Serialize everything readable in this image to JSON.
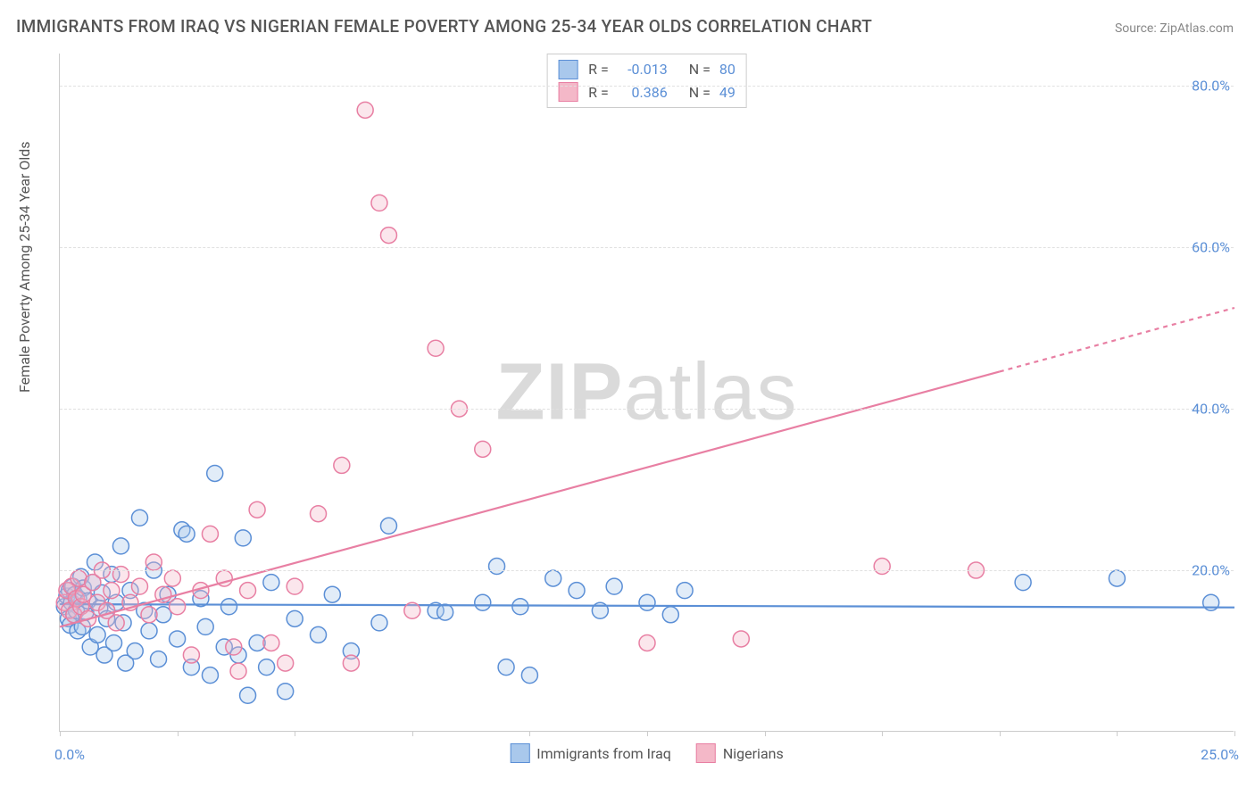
{
  "title": "IMMIGRANTS FROM IRAQ VS NIGERIAN FEMALE POVERTY AMONG 25-34 YEAR OLDS CORRELATION CHART",
  "source": "Source: ZipAtlas.com",
  "ylabel": "Female Poverty Among 25-34 Year Olds",
  "watermark_bold": "ZIP",
  "watermark_rest": "atlas",
  "chart": {
    "type": "scatter",
    "background_color": "#ffffff",
    "grid_color": "#e0e0e0",
    "axis_color": "#cccccc",
    "tick_label_color": "#5b8fd6",
    "xlim": [
      0,
      25
    ],
    "ylim": [
      0,
      84
    ],
    "x_tick_positions": [
      0,
      2.5,
      5,
      7.5,
      10,
      12.5,
      15,
      17.5,
      20,
      22.5,
      25
    ],
    "x_tick_labels": {
      "0": "0.0%",
      "25": "25.0%"
    },
    "y_gridlines": [
      20,
      40,
      60,
      80
    ],
    "y_tick_labels": {
      "20": "20.0%",
      "40": "40.0%",
      "60": "60.0%",
      "80": "80.0%"
    },
    "marker_radius": 9,
    "marker_stroke_width": 1.5,
    "marker_fill_opacity": 0.35,
    "line_width": 2.2
  },
  "series": [
    {
      "key": "iraq",
      "label": "Immigrants from Iraq",
      "color_fill": "#a9c8ec",
      "color_stroke": "#5b8fd6",
      "R": "-0.013",
      "N": "80",
      "trend": {
        "slope": -0.016,
        "intercept": 15.8,
        "x_solid_end": 25,
        "x_dash_end": 25
      },
      "points": [
        [
          0.1,
          15.5
        ],
        [
          0.15,
          16.8
        ],
        [
          0.18,
          14.0
        ],
        [
          0.2,
          17.5
        ],
        [
          0.22,
          13.2
        ],
        [
          0.25,
          16.0
        ],
        [
          0.28,
          18.0
        ],
        [
          0.3,
          14.5
        ],
        [
          0.32,
          17.0
        ],
        [
          0.35,
          15.0
        ],
        [
          0.38,
          12.5
        ],
        [
          0.4,
          16.5
        ],
        [
          0.45,
          19.2
        ],
        [
          0.48,
          13.0
        ],
        [
          0.5,
          17.8
        ],
        [
          0.55,
          14.8
        ],
        [
          0.6,
          16.2
        ],
        [
          0.65,
          10.5
        ],
        [
          0.7,
          18.5
        ],
        [
          0.75,
          21.0
        ],
        [
          0.8,
          12.0
        ],
        [
          0.85,
          15.3
        ],
        [
          0.9,
          17.2
        ],
        [
          0.95,
          9.5
        ],
        [
          1.0,
          14.0
        ],
        [
          1.1,
          19.5
        ],
        [
          1.15,
          11.0
        ],
        [
          1.2,
          16.0
        ],
        [
          1.3,
          23.0
        ],
        [
          1.35,
          13.5
        ],
        [
          1.4,
          8.5
        ],
        [
          1.5,
          17.5
        ],
        [
          1.6,
          10.0
        ],
        [
          1.7,
          26.5
        ],
        [
          1.8,
          15.0
        ],
        [
          1.9,
          12.5
        ],
        [
          2.0,
          20.0
        ],
        [
          2.1,
          9.0
        ],
        [
          2.2,
          14.5
        ],
        [
          2.3,
          17.0
        ],
        [
          2.5,
          11.5
        ],
        [
          2.6,
          25.0
        ],
        [
          2.7,
          24.5
        ],
        [
          2.8,
          8.0
        ],
        [
          3.0,
          16.5
        ],
        [
          3.1,
          13.0
        ],
        [
          3.2,
          7.0
        ],
        [
          3.3,
          32.0
        ],
        [
          3.5,
          10.5
        ],
        [
          3.6,
          15.5
        ],
        [
          3.8,
          9.5
        ],
        [
          3.9,
          24.0
        ],
        [
          4.0,
          4.5
        ],
        [
          4.2,
          11.0
        ],
        [
          4.4,
          8.0
        ],
        [
          4.5,
          18.5
        ],
        [
          4.8,
          5.0
        ],
        [
          5.0,
          14.0
        ],
        [
          5.5,
          12.0
        ],
        [
          5.8,
          17.0
        ],
        [
          6.2,
          10.0
        ],
        [
          6.8,
          13.5
        ],
        [
          7.0,
          25.5
        ],
        [
          8.0,
          15.0
        ],
        [
          8.2,
          14.8
        ],
        [
          9.0,
          16.0
        ],
        [
          9.3,
          20.5
        ],
        [
          9.5,
          8.0
        ],
        [
          9.8,
          15.5
        ],
        [
          10.0,
          7.0
        ],
        [
          10.5,
          19.0
        ],
        [
          11.0,
          17.5
        ],
        [
          11.5,
          15.0
        ],
        [
          11.8,
          18.0
        ],
        [
          12.5,
          16.0
        ],
        [
          13.0,
          14.5
        ],
        [
          13.3,
          17.5
        ],
        [
          20.5,
          18.5
        ],
        [
          22.5,
          19.0
        ],
        [
          24.5,
          16.0
        ]
      ]
    },
    {
      "key": "nigerian",
      "label": "Nigerians",
      "color_fill": "#f4b8c8",
      "color_stroke": "#e87fa3",
      "R": "0.386",
      "N": "49",
      "trend": {
        "slope": 1.58,
        "intercept": 13.0,
        "x_solid_end": 20,
        "x_dash_end": 25
      },
      "points": [
        [
          0.1,
          16.0
        ],
        [
          0.15,
          17.5
        ],
        [
          0.2,
          15.0
        ],
        [
          0.25,
          18.0
        ],
        [
          0.3,
          14.5
        ],
        [
          0.35,
          16.5
        ],
        [
          0.4,
          19.0
        ],
        [
          0.45,
          15.5
        ],
        [
          0.5,
          17.0
        ],
        [
          0.6,
          14.0
        ],
        [
          0.7,
          18.5
        ],
        [
          0.8,
          16.0
        ],
        [
          0.9,
          20.0
        ],
        [
          1.0,
          15.0
        ],
        [
          1.1,
          17.5
        ],
        [
          1.2,
          13.5
        ],
        [
          1.3,
          19.5
        ],
        [
          1.5,
          16.0
        ],
        [
          1.7,
          18.0
        ],
        [
          1.9,
          14.5
        ],
        [
          2.0,
          21.0
        ],
        [
          2.2,
          17.0
        ],
        [
          2.4,
          19.0
        ],
        [
          2.5,
          15.5
        ],
        [
          2.8,
          9.5
        ],
        [
          3.0,
          17.5
        ],
        [
          3.2,
          24.5
        ],
        [
          3.5,
          19.0
        ],
        [
          3.7,
          10.5
        ],
        [
          3.8,
          7.5
        ],
        [
          4.0,
          17.5
        ],
        [
          4.2,
          27.5
        ],
        [
          4.5,
          11.0
        ],
        [
          4.8,
          8.5
        ],
        [
          5.0,
          18.0
        ],
        [
          5.5,
          27.0
        ],
        [
          6.0,
          33.0
        ],
        [
          6.2,
          8.5
        ],
        [
          6.5,
          77.0
        ],
        [
          6.8,
          65.5
        ],
        [
          7.0,
          61.5
        ],
        [
          7.5,
          15.0
        ],
        [
          8.0,
          47.5
        ],
        [
          8.5,
          40.0
        ],
        [
          9.0,
          35.0
        ],
        [
          12.5,
          11.0
        ],
        [
          14.5,
          11.5
        ],
        [
          17.5,
          20.5
        ],
        [
          19.5,
          20.0
        ]
      ]
    }
  ]
}
